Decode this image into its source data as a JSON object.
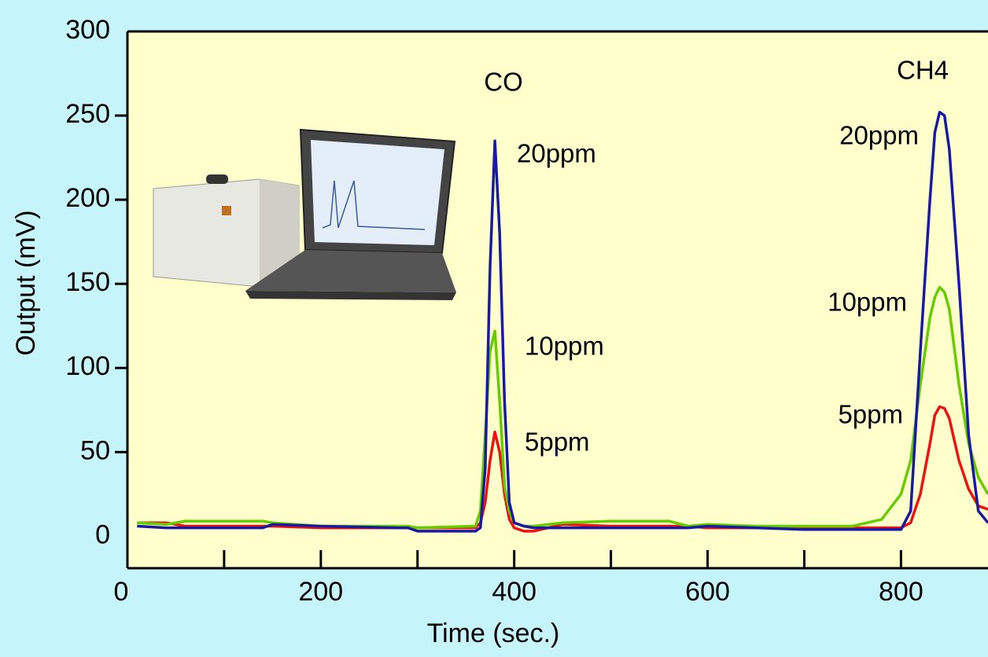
{
  "chart_data": {
    "type": "line",
    "ylabel": "Output (mV)",
    "xlabel": "Time (sec.)",
    "xlim": [
      0,
      890
    ],
    "ylim": [
      -19,
      300
    ],
    "xticks": [
      0,
      200,
      400,
      600,
      800
    ],
    "xminor_ticks": [
      100,
      300,
      500,
      700
    ],
    "yticks": [
      0,
      50,
      100,
      150,
      200,
      250,
      300
    ],
    "grid": false,
    "x": [
      10,
      40,
      60,
      100,
      140,
      150,
      200,
      280,
      290,
      300,
      360,
      365,
      370,
      375,
      380,
      385,
      390,
      395,
      400,
      410,
      420,
      450,
      500,
      560,
      580,
      600,
      650,
      700,
      750,
      780,
      800,
      810,
      820,
      830,
      835,
      840,
      845,
      850,
      860,
      870,
      880,
      890
    ],
    "series": [
      {
        "color": "#ee1111",
        "values": [
          8,
          8,
          6,
          6,
          6,
          6,
          5,
          5,
          5,
          5,
          5,
          8,
          20,
          45,
          62,
          50,
          25,
          10,
          5,
          3,
          3,
          7,
          6,
          6,
          6,
          5,
          5,
          5,
          5,
          5,
          5,
          8,
          25,
          55,
          72,
          77,
          76,
          70,
          45,
          28,
          18,
          16
        ]
      },
      {
        "color": "#66cc00",
        "values": [
          8,
          7,
          9,
          9,
          9,
          8,
          6,
          6,
          6,
          5,
          6,
          15,
          60,
          110,
          122,
          80,
          30,
          15,
          8,
          6,
          6,
          8,
          9,
          9,
          6,
          7,
          6,
          6,
          6,
          10,
          25,
          45,
          90,
          130,
          142,
          148,
          145,
          135,
          90,
          55,
          35,
          25
        ]
      },
      {
        "color": "#1a1aa0",
        "values": [
          6,
          5,
          5,
          5,
          5,
          7,
          6,
          5,
          5,
          3,
          3,
          5,
          40,
          160,
          235,
          180,
          80,
          20,
          8,
          6,
          5,
          5,
          5,
          5,
          5,
          6,
          5,
          4,
          4,
          4,
          4,
          15,
          110,
          200,
          240,
          252,
          250,
          230,
          150,
          60,
          15,
          8
        ]
      }
    ],
    "annotations": [
      "CO",
      "20ppm",
      "10ppm",
      "5ppm",
      "CH4",
      "20ppm",
      "10ppm",
      "5ppm"
    ]
  }
}
